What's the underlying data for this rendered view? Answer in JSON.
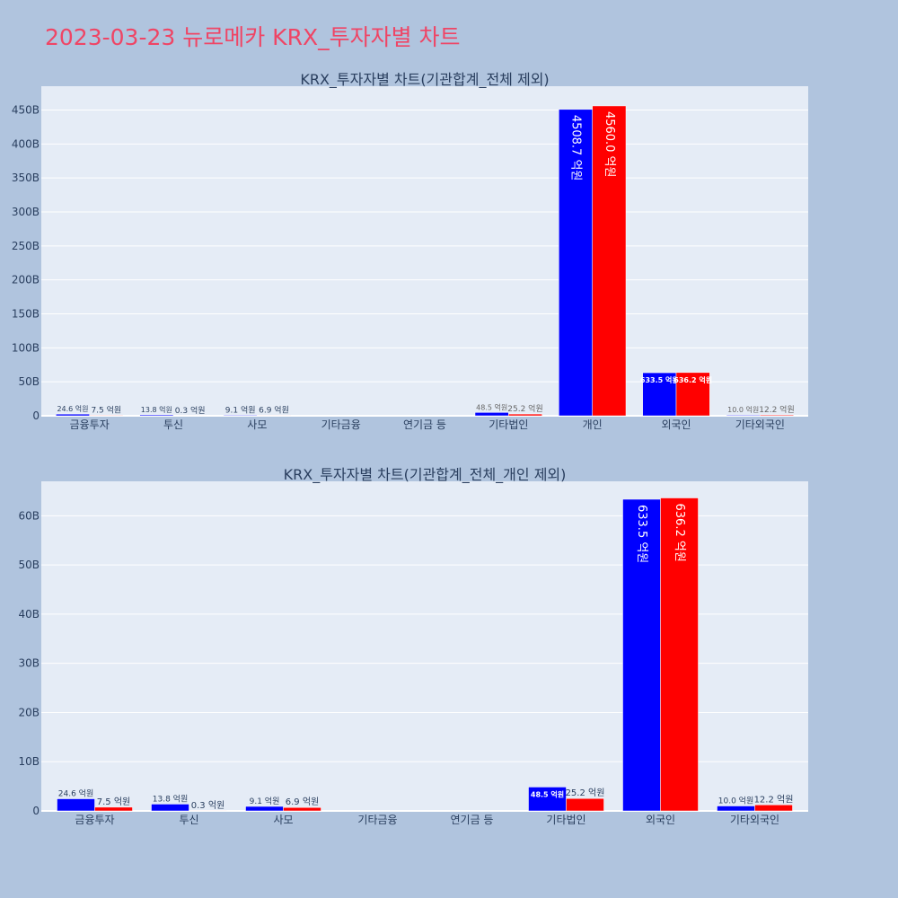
{
  "page_title": "2023-03-23 뉴로메카 KRX_투자자별 차트",
  "colors": {
    "buy": "#0000ff",
    "sell": "#ff0000",
    "plot_bg": "#e5ecf6",
    "page_bg": "#b0c4de",
    "title": "#ef4565"
  },
  "chart_data": [
    {
      "type": "bar",
      "title": "KRX_투자자별 차트(기관합계_전체 제외)",
      "categories": [
        "금융투자",
        "투신",
        "사모",
        "기타금융",
        "연기금 등",
        "기타법인",
        "개인",
        "외국인",
        "기타외국인"
      ],
      "series": [
        {
          "values": [
            2460000000,
            1380000000,
            910000000,
            0,
            0,
            4850000000,
            450870000000,
            63350000000,
            1000000000
          ],
          "labels": [
            "24.6 억원",
            "13.8 억원",
            "9.1 억원",
            "",
            "",
            "48.5 억원",
            "4508.7 억원",
            "633.5 억원",
            "10.0 억원"
          ]
        },
        {
          "values": [
            750000000,
            30000000,
            690000000,
            0,
            0,
            2520000000,
            456000000000,
            63620000000,
            1220000000
          ],
          "labels": [
            "7.5 억원",
            "0.3 억원",
            "6.9 억원",
            "",
            "",
            "25.2 억원",
            "4560.0 억원",
            "636.2 억원",
            "12.2 억원"
          ]
        }
      ],
      "ylim": [
        0,
        485000000000
      ],
      "yticks": [
        0,
        50000000000,
        100000000000,
        150000000000,
        200000000000,
        250000000000,
        300000000000,
        350000000000,
        400000000000,
        450000000000
      ],
      "ytick_labels": [
        "0",
        "50B",
        "100B",
        "150B",
        "200B",
        "250B",
        "300B",
        "350B",
        "400B",
        "450B"
      ],
      "grid": true
    },
    {
      "type": "bar",
      "title": "KRX_투자자별 차트(기관합계_전체_개인 제외)",
      "categories": [
        "금융투자",
        "투신",
        "사모",
        "기타금융",
        "연기금 등",
        "기타법인",
        "외국인",
        "기타외국인"
      ],
      "series": [
        {
          "values": [
            2460000000,
            1380000000,
            910000000,
            0,
            0,
            4850000000,
            63350000000,
            1000000000
          ],
          "labels": [
            "24.6 억원",
            "13.8 억원",
            "9.1 억원",
            "",
            "",
            "48.5 억원",
            "633.5 억원",
            "10.0 억원"
          ]
        },
        {
          "values": [
            750000000,
            30000000,
            690000000,
            0,
            0,
            2520000000,
            63620000000,
            1220000000
          ],
          "labels": [
            "7.5 억원",
            "0.3 억원",
            "6.9 억원",
            "",
            "",
            "25.2 억원",
            "636.2 억원",
            "12.2 억원"
          ]
        }
      ],
      "ylim": [
        0,
        67000000000
      ],
      "yticks": [
        0,
        10000000000,
        20000000000,
        30000000000,
        40000000000,
        50000000000,
        60000000000
      ],
      "ytick_labels": [
        "0",
        "10B",
        "20B",
        "30B",
        "40B",
        "50B",
        "60B"
      ],
      "grid": true
    }
  ]
}
